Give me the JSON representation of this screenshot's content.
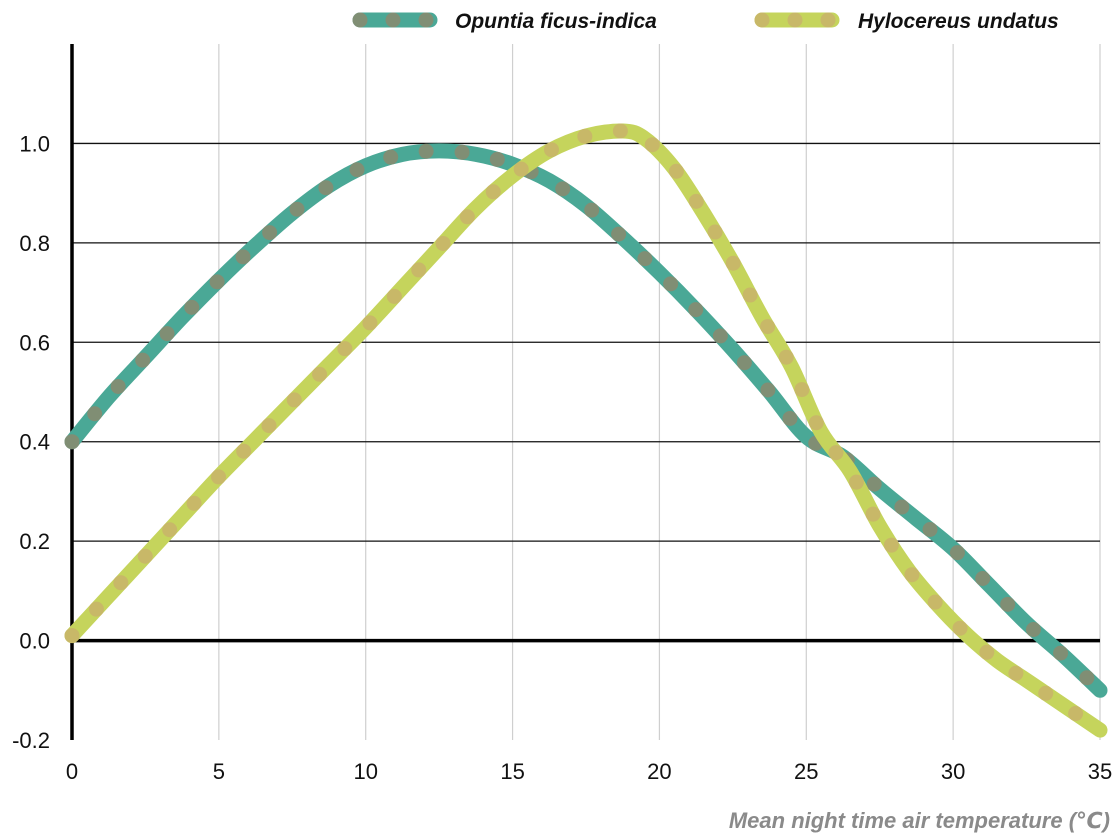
{
  "chart_data": {
    "type": "line",
    "title": "",
    "xlabel": "Mean night time air temperature (℃)",
    "ylabel": "",
    "xlim": [
      0,
      35
    ],
    "ylim": [
      -0.2,
      1.2
    ],
    "x_ticks": [
      "0",
      "5",
      "10",
      "15",
      "20",
      "25",
      "30",
      "35"
    ],
    "y_ticks": [
      "-0.2",
      "0.0",
      "0.2",
      "0.4",
      "0.6",
      "0.8",
      "1.0"
    ],
    "grid": "both",
    "legend_position": "top-right",
    "series": [
      {
        "name": "Opuntia ficus-indica",
        "color": "#4aa896",
        "dot_color": "#8a8a6e",
        "x": [
          0,
          1.25,
          2.5,
          3.75,
          5,
          6.25,
          7.5,
          8.75,
          10,
          11.25,
          12.5,
          13.75,
          15,
          16.25,
          17.5,
          18.75,
          20,
          21.25,
          22.5,
          23.75,
          25,
          26.25,
          27.5,
          28.75,
          30,
          31.25,
          32.5,
          33.75,
          35
        ],
        "y": [
          0.4,
          0.49,
          0.57,
          0.65,
          0.725,
          0.795,
          0.86,
          0.915,
          0.955,
          0.978,
          0.985,
          0.978,
          0.958,
          0.925,
          0.875,
          0.81,
          0.74,
          0.665,
          0.585,
          0.5,
          0.41,
          0.37,
          0.305,
          0.245,
          0.185,
          0.11,
          0.035,
          -0.03,
          -0.1
        ]
      },
      {
        "name": "Hylocereus undatus",
        "color": "#c5d45c",
        "dot_color": "#c8b36a",
        "x": [
          0,
          1.25,
          2.5,
          3.75,
          5,
          6.25,
          7.5,
          8.75,
          10,
          11.25,
          12.5,
          13.75,
          15,
          16.25,
          17.5,
          18.75,
          19.5,
          20.5,
          21.5,
          22.5,
          23.5,
          24.5,
          25.5,
          26.5,
          27.5,
          28.5,
          29.5,
          30.5,
          31.5,
          32.5,
          33.5,
          35
        ],
        "y": [
          0.01,
          0.09,
          0.17,
          0.25,
          0.33,
          0.405,
          0.48,
          0.555,
          0.63,
          0.71,
          0.79,
          0.87,
          0.935,
          0.985,
          1.015,
          1.025,
          1.01,
          0.95,
          0.86,
          0.76,
          0.65,
          0.55,
          0.42,
          0.34,
          0.23,
          0.14,
          0.07,
          0.01,
          -0.04,
          -0.08,
          -0.12,
          -0.18
        ]
      }
    ]
  }
}
